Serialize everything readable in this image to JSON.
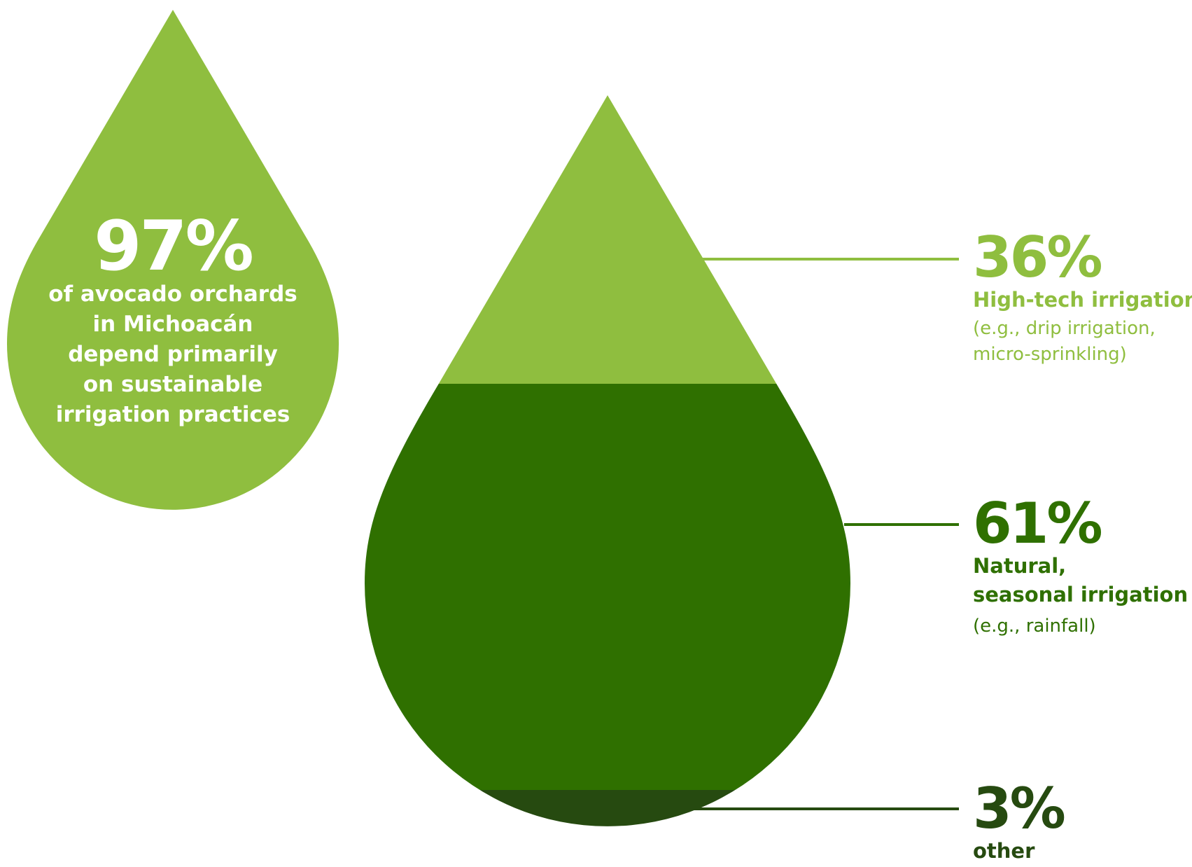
{
  "headline": {
    "value": "97%",
    "lines": [
      "of avocado orchards",
      "in Michoacán",
      "depend primarily",
      "on sustainable",
      "irrigation practices"
    ]
  },
  "colors": {
    "light_green": "#8fbe3f",
    "dark_green": "#2f7000",
    "darkest_green": "#264a10",
    "background": "#ffffff",
    "headline_text": "#ffffff"
  },
  "chart_data": {
    "type": "pie",
    "title": "",
    "total_label": "97%",
    "slices": [
      {
        "value": 36,
        "label": "36%",
        "name": "High-tech irrigation",
        "note": [
          "(e.g., drip irrigation,",
          "micro-sprinkling)"
        ],
        "color": "#8fbe3f"
      },
      {
        "value": 61,
        "label": "61%",
        "name_lines": [
          "Natural,",
          "seasonal irrigation"
        ],
        "note": [
          "(e.g., rainfall)"
        ],
        "color": "#2f7000"
      },
      {
        "value": 3,
        "label": "3%",
        "name": "other",
        "note": [],
        "color": "#264a10"
      }
    ]
  }
}
